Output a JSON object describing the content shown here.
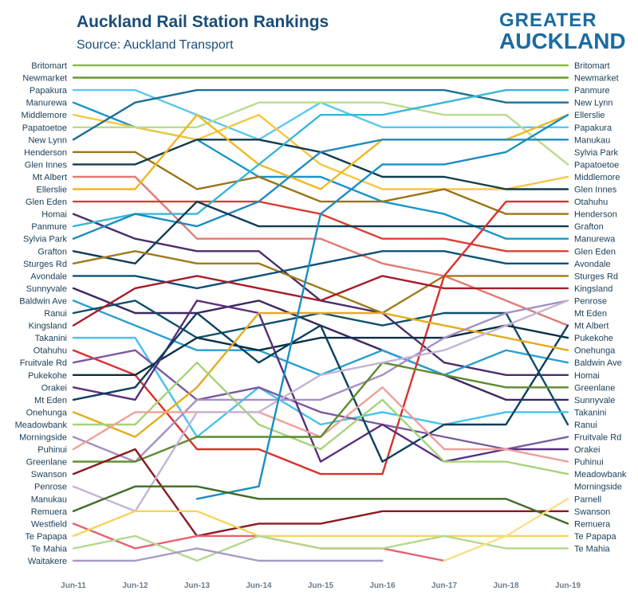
{
  "header": {
    "title": "Auckland Rail Station Rankings",
    "subtitle": "Source: Auckland Transport"
  },
  "logo": {
    "line1": "GREATER",
    "line2": "AUCKLAND"
  },
  "chart_data": {
    "type": "line",
    "title": "Auckland Rail Station Rankings",
    "subtitle": "Source: Auckland Transport",
    "x": [
      "Jun-11",
      "Jun-12",
      "Jun-13",
      "Jun-14",
      "Jun-15",
      "Jun-16",
      "Jun-17",
      "Jun-18",
      "Jun-19"
    ],
    "yrange": [
      1,
      40
    ],
    "left_labels": [
      "Britomart",
      "Newmarket",
      "Papakura",
      "Manurewa",
      "Middlemore",
      "Papatoetoe",
      "New Lynn",
      "Henderson",
      "Glen Innes",
      "Mt Albert",
      "Ellerslie",
      "Glen Eden",
      "Homai",
      "Panmure",
      "Sylvia Park",
      "Grafton",
      "Sturges Rd",
      "Avondale",
      "Sunnyvale",
      "Baldwin Ave",
      "Ranui",
      "Kingsland",
      "Takanini",
      "Otahuhu",
      "Fruitvale Rd",
      "Pukekohe",
      "Orakei",
      "Mt Eden",
      "Onehunga",
      "Meadowbank",
      "Morningside",
      "Puhinui",
      "Greenlane",
      "Swanson",
      "Penrose",
      "Manukau",
      "Remuera",
      "Westfield",
      "Te Papapa",
      "Te Mahia",
      "Waitakere"
    ],
    "right_labels": [
      "Britomart",
      "Newmarket",
      "Panmure",
      "New Lynn",
      "Ellerslie",
      "Papakura",
      "Manukau",
      "Sylvia Park",
      "Papatoetoe",
      "Middlemore",
      "Glen Innes",
      "Otahuhu",
      "Henderson",
      "Grafton",
      "Manurewa",
      "Glen Eden",
      "Avondale",
      "Sturges Rd",
      "Kingsland",
      "Penrose",
      "Mt Eden",
      "Mt Albert",
      "Pukekohe",
      "Onehunga",
      "Baldwin Ave",
      "Homai",
      "Greenlane",
      "Sunnyvale",
      "Takanini",
      "Ranui",
      "Fruitvale Rd",
      "Orakei",
      "Puhinui",
      "Meadowbank",
      "Morningside",
      "Parnell",
      "Swanson",
      "Remuera",
      "Te Papapa",
      "Te Mahia"
    ],
    "series": [
      {
        "name": "Britomart",
        "color": "#8cbf3f",
        "values": [
          1,
          1,
          1,
          1,
          1,
          1,
          1,
          1,
          1
        ]
      },
      {
        "name": "Newmarket",
        "color": "#6a9a2a",
        "values": [
          2,
          2,
          2,
          2,
          2,
          2,
          2,
          2,
          2
        ]
      },
      {
        "name": "Papakura",
        "color": "#5bc8f0",
        "values": [
          3,
          3,
          5,
          7,
          4,
          6,
          6,
          6,
          6
        ]
      },
      {
        "name": "Manurewa",
        "color": "#1a95c8",
        "values": [
          4,
          6,
          7,
          10,
          10,
          12,
          13,
          15,
          15
        ]
      },
      {
        "name": "Middlemore",
        "color": "#f5c842",
        "values": [
          5,
          6,
          7,
          5,
          9,
          11,
          11,
          11,
          10
        ]
      },
      {
        "name": "Papatoetoe",
        "color": "#b9dc8f",
        "values": [
          6,
          6,
          6,
          4,
          4,
          4,
          5,
          5,
          9
        ]
      },
      {
        "name": "New Lynn",
        "color": "#1f6f94",
        "values": [
          7,
          4,
          3,
          3,
          3,
          3,
          3,
          4,
          4
        ]
      },
      {
        "name": "Henderson",
        "color": "#9a7416",
        "values": [
          8,
          8,
          11,
          10,
          12,
          12,
          11,
          13,
          13
        ]
      },
      {
        "name": "Glen Innes",
        "color": "#123b4e",
        "values": [
          9,
          9,
          7,
          7,
          8,
          10,
          10,
          11,
          11
        ]
      },
      {
        "name": "Mt Albert",
        "color": "#e27a74",
        "values": [
          10,
          10,
          15,
          15,
          15,
          17,
          18,
          20,
          22
        ]
      },
      {
        "name": "Ellerslie",
        "color": "#f0b820",
        "values": [
          11,
          11,
          5,
          9,
          11,
          7,
          7,
          7,
          5
        ]
      },
      {
        "name": "Glen Eden",
        "color": "#d74036",
        "values": [
          12,
          12,
          12,
          12,
          13,
          15,
          15,
          16,
          16
        ]
      },
      {
        "name": "Homai",
        "color": "#4a2e6a",
        "values": [
          13,
          15,
          16,
          16,
          20,
          21,
          25,
          26,
          26
        ]
      },
      {
        "name": "Panmure",
        "color": "#39b6d8",
        "values": [
          14,
          13,
          13,
          9,
          5,
          5,
          4,
          3,
          3
        ]
      },
      {
        "name": "Sylvia Park",
        "color": "#1e8bbd",
        "values": [
          15,
          13,
          14,
          12,
          8,
          7,
          7,
          7,
          7
        ]
      },
      {
        "name": "Grafton",
        "color": "#0f3c56",
        "values": [
          16,
          17,
          12,
          14,
          14,
          14,
          14,
          14,
          14
        ]
      },
      {
        "name": "Sturges Rd",
        "color": "#9e7a1a",
        "values": [
          17,
          16,
          17,
          17,
          19,
          21,
          18,
          18,
          18
        ]
      },
      {
        "name": "Avondale",
        "color": "#0d5178",
        "values": [
          18,
          18,
          19,
          18,
          17,
          16,
          16,
          17,
          17
        ]
      },
      {
        "name": "Sunnyvale",
        "color": "#3c2760",
        "values": [
          19,
          21,
          21,
          20,
          22,
          24,
          26,
          28,
          28
        ]
      },
      {
        "name": "Baldwin Ave",
        "color": "#2a9fd0",
        "values": [
          20,
          22,
          24,
          24,
          26,
          24,
          26,
          24,
          25
        ]
      },
      {
        "name": "Ranui",
        "color": "#0e4f6d",
        "values": [
          21,
          20,
          23,
          22,
          21,
          22,
          21,
          21,
          30
        ]
      },
      {
        "name": "Kingsland",
        "color": "#a41d2a",
        "values": [
          22,
          19,
          18,
          19,
          20,
          18,
          19,
          19,
          19
        ]
      },
      {
        "name": "Takanini",
        "color": "#45c2ee",
        "values": [
          23,
          23,
          31,
          27,
          30,
          29,
          30,
          29,
          29
        ]
      },
      {
        "name": "Otahuhu",
        "color": "#d9312c",
        "values": [
          24,
          26,
          32,
          32,
          34,
          34,
          18,
          12,
          12
        ]
      },
      {
        "name": "Fruitvale Rd",
        "color": "#7a5a9e",
        "values": [
          25,
          24,
          28,
          27,
          29,
          30,
          31,
          32,
          31
        ]
      },
      {
        "name": "Pukekohe",
        "color": "#0a2f43",
        "values": [
          26,
          26,
          23,
          24,
          23,
          23,
          23,
          22,
          23
        ]
      },
      {
        "name": "Orakei",
        "color": "#5a2e7e",
        "values": [
          27,
          28,
          20,
          21,
          33,
          30,
          33,
          32,
          32
        ]
      },
      {
        "name": "Mt Eden",
        "color": "#0b3f5e",
        "values": [
          28,
          27,
          21,
          25,
          22,
          33,
          30,
          30,
          22
        ]
      },
      {
        "name": "Onehunga",
        "color": "#e4ac1c",
        "values": [
          29,
          31,
          27,
          21,
          21,
          21,
          22,
          23,
          24
        ]
      },
      {
        "name": "Meadowbank",
        "color": "#a6d37a",
        "values": [
          30,
          30,
          25,
          30,
          32,
          28,
          33,
          33,
          34
        ]
      },
      {
        "name": "Morningside",
        "color": "#a58fc4",
        "values": [
          31,
          33,
          28,
          28,
          28,
          26,
          23,
          21,
          20
        ]
      },
      {
        "name": "Puhinui",
        "color": "#f0a09a",
        "values": [
          32,
          29,
          29,
          29,
          31,
          27,
          32,
          32,
          33
        ]
      },
      {
        "name": "Greenlane",
        "color": "#5d8b2e",
        "values": [
          33,
          33,
          31,
          31,
          31,
          25,
          26,
          27,
          27
        ]
      },
      {
        "name": "Swanson",
        "color": "#8a1a22",
        "values": [
          34,
          32,
          39,
          38,
          38,
          37,
          37,
          37,
          37
        ]
      },
      {
        "name": "Penrose",
        "color": "#c3b5d6",
        "values": [
          35,
          37,
          29,
          29,
          26,
          25,
          24,
          22,
          20
        ]
      },
      {
        "name": "Manukau",
        "color": "#1a8ec4",
        "values": [
          null,
          null,
          36,
          35,
          13,
          9,
          9,
          8,
          5
        ]
      },
      {
        "name": "Remuera",
        "color": "#3e6d22",
        "values": [
          37,
          35,
          35,
          36,
          36,
          36,
          36,
          36,
          38
        ]
      },
      {
        "name": "Westfield",
        "color": "#e86070",
        "values": [
          38,
          40,
          39,
          39,
          40,
          40,
          41,
          null,
          null
        ]
      },
      {
        "name": "Te Papapa",
        "color": "#f7d45a",
        "values": [
          39,
          37,
          37,
          39,
          39,
          39,
          39,
          39,
          39
        ]
      },
      {
        "name": "Te Mahia",
        "color": "#b5d88f",
        "values": [
          40,
          39,
          41,
          39,
          40,
          40,
          39,
          40,
          40
        ]
      },
      {
        "name": "Waitakere",
        "color": "#a79ac6",
        "values": [
          41,
          41,
          40,
          41,
          41,
          41,
          null,
          null,
          null
        ]
      },
      {
        "name": "Parnell",
        "color": "#f9df88",
        "values": [
          null,
          null,
          null,
          null,
          null,
          null,
          41,
          39,
          36
        ]
      }
    ]
  }
}
